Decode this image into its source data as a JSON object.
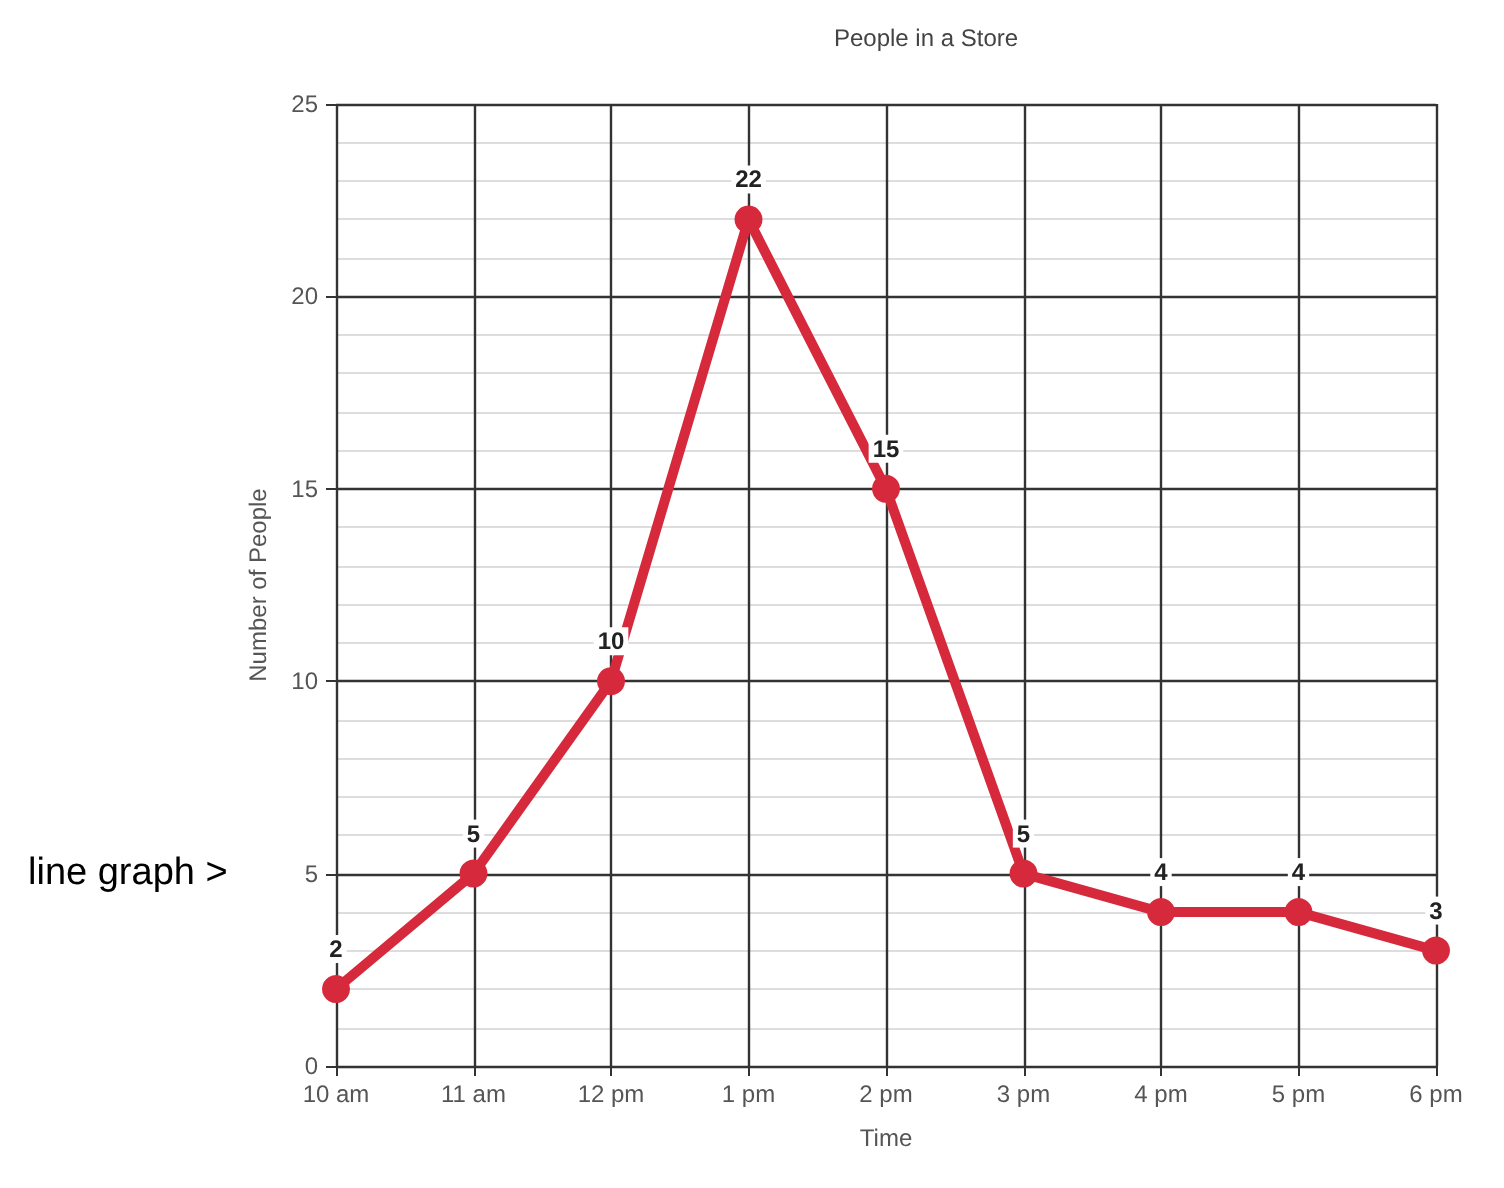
{
  "chart_data": {
    "type": "line",
    "title": "People in a Store",
    "xlabel": "Time",
    "ylabel": "Number of People",
    "categories": [
      "10 am",
      "11 am",
      "12 pm",
      "1 pm",
      "2 pm",
      "3 pm",
      "4 pm",
      "5 pm",
      "6 pm"
    ],
    "series": [
      {
        "color": "#d62a3c",
        "values": [
          2,
          5,
          10,
          22,
          15,
          5,
          4,
          4,
          3
        ]
      }
    ],
    "ylim": [
      0,
      25
    ],
    "yticks": [
      0,
      5,
      10,
      15,
      20,
      25
    ],
    "grid": true,
    "data_labels": true,
    "marker": "circle",
    "line_style": "solid",
    "annotations": [
      "line graph >"
    ]
  }
}
